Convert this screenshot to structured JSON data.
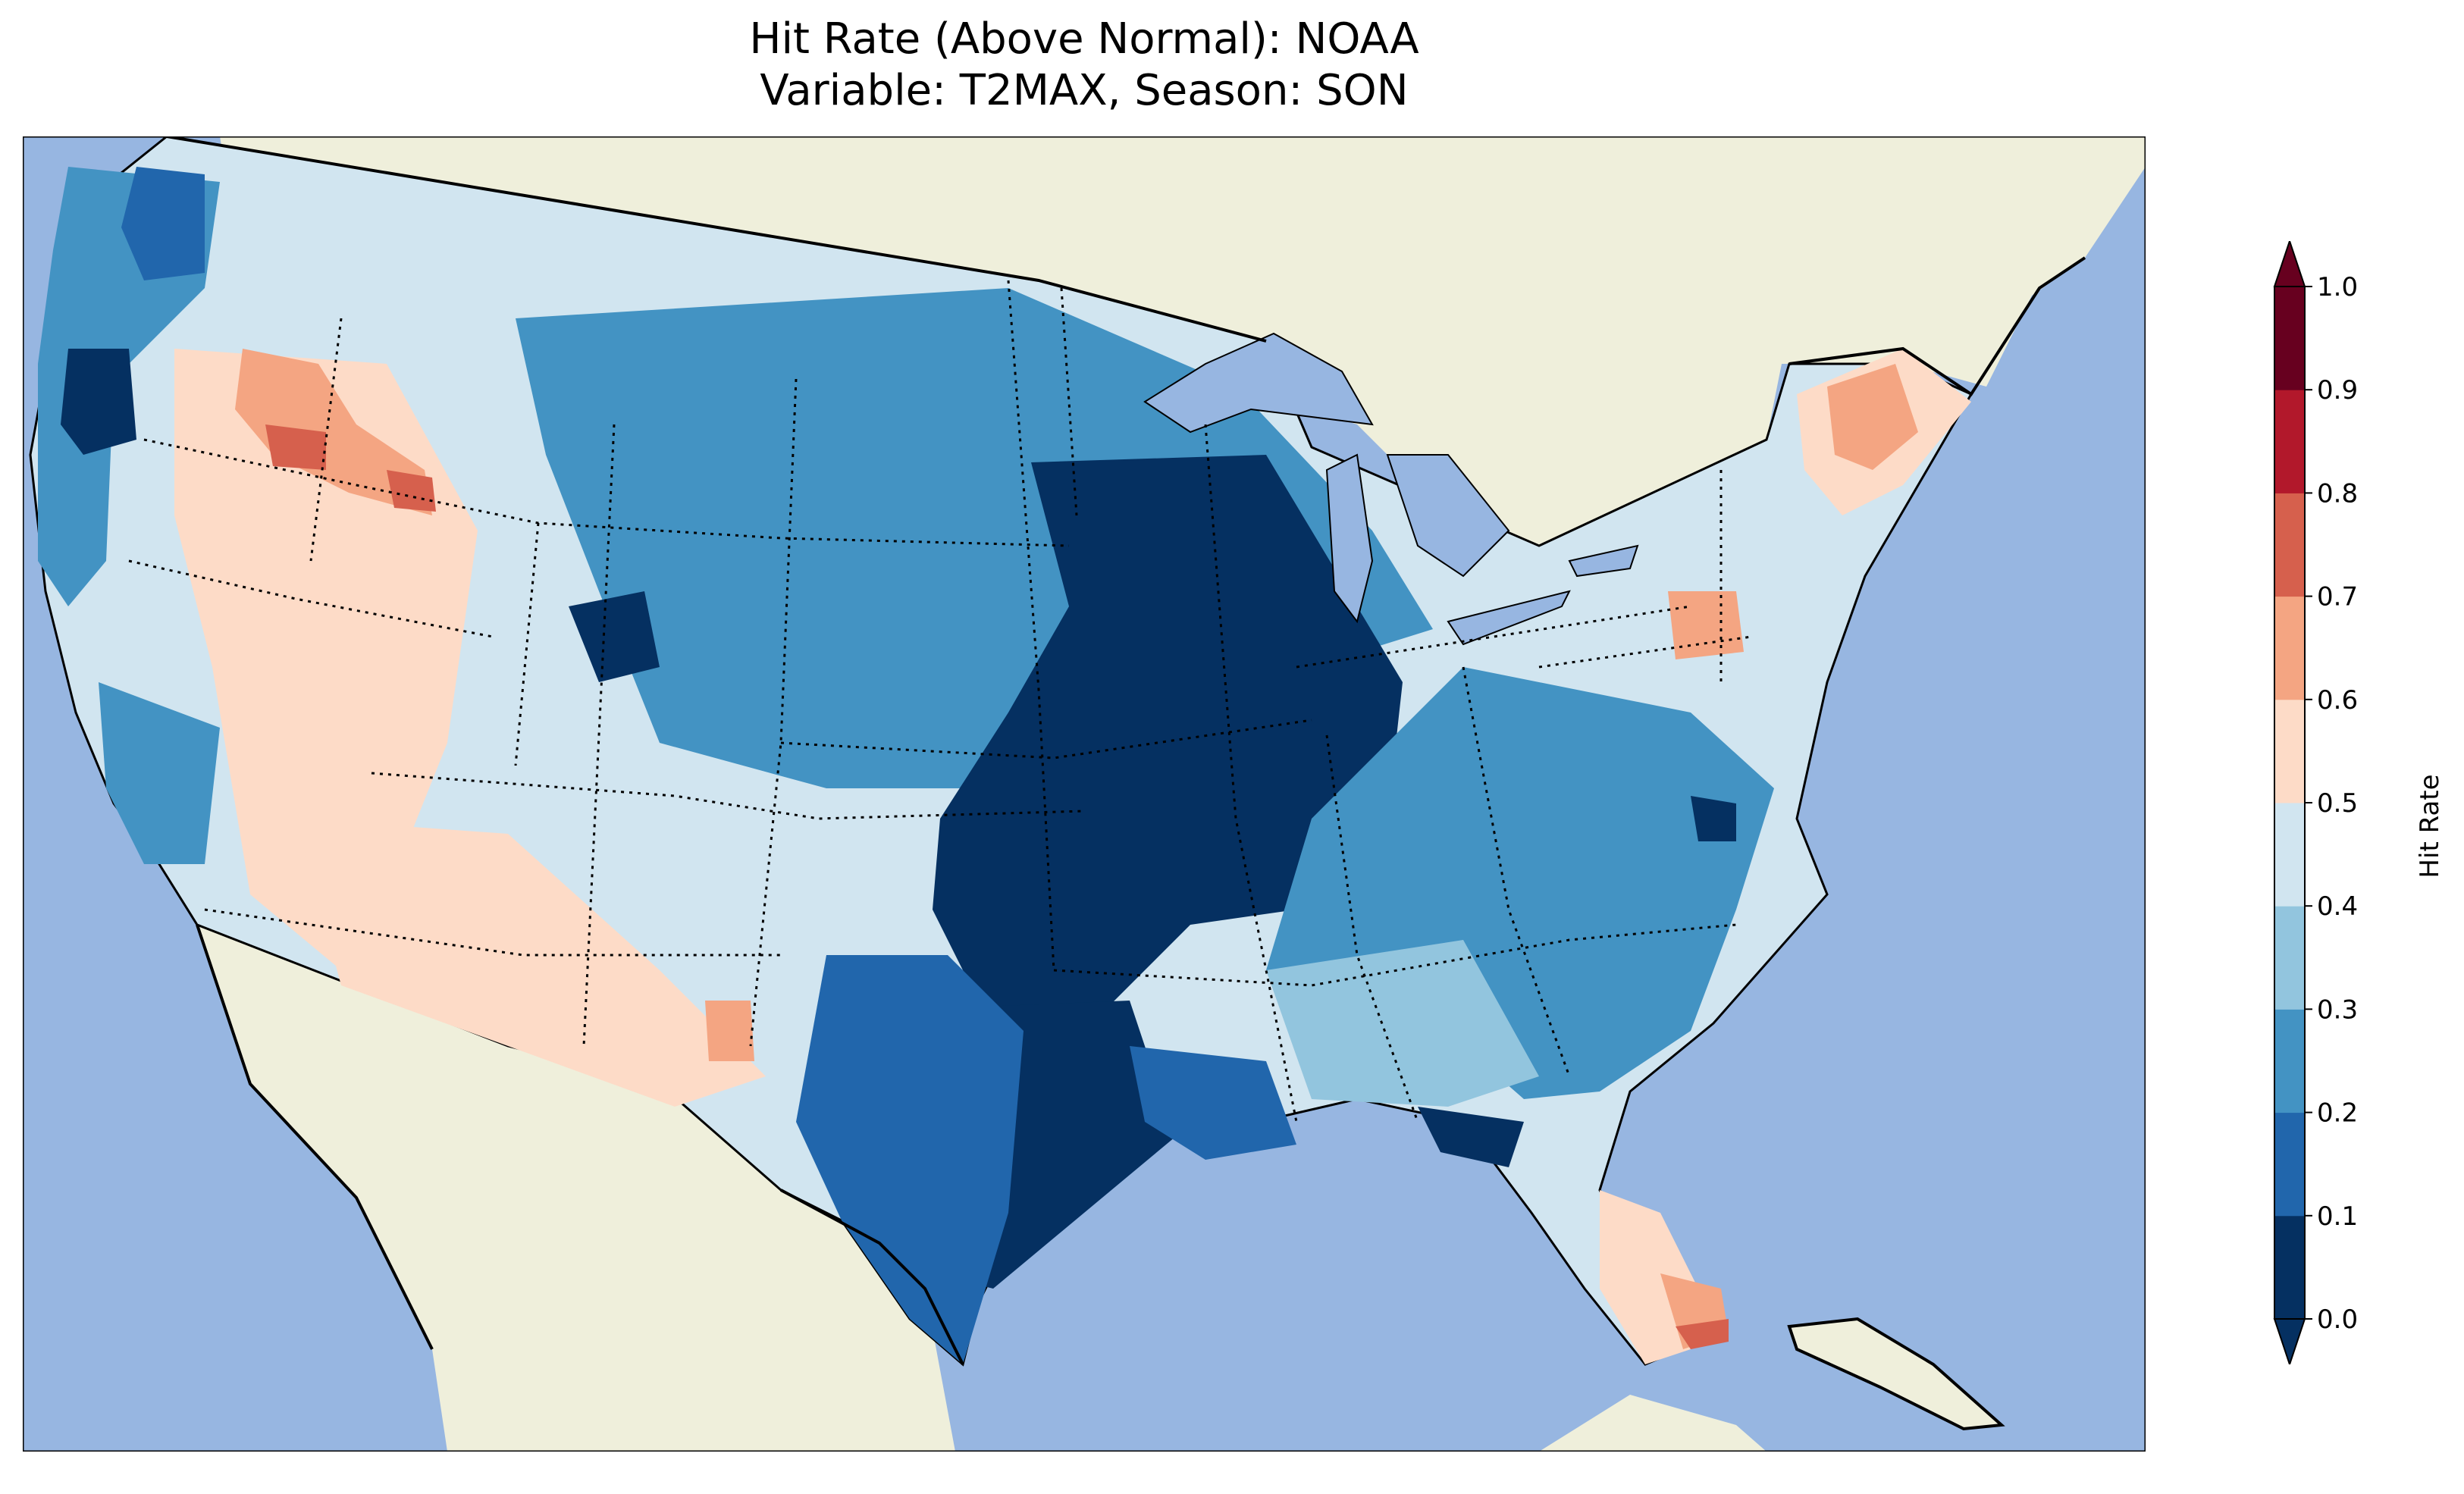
{
  "title": {
    "line1": "Hit Rate (Above Normal): NOAA",
    "line2": "Variable: T2MAX, Season: SON"
  },
  "colorbar": {
    "label": "Hit Rate",
    "ticks": [
      "0.0",
      "0.1",
      "0.2",
      "0.3",
      "0.4",
      "0.5",
      "0.6",
      "0.7",
      "0.8",
      "0.9",
      "1.0"
    ],
    "colors": [
      "#053061",
      "#2166ac",
      "#4393c3",
      "#92c5de",
      "#d1e5f0",
      "#fddbc7",
      "#f4a582",
      "#d6604d",
      "#b2182b",
      "#67001f"
    ],
    "under_color": "#053061",
    "over_color": "#67001f",
    "extend": "both"
  },
  "map": {
    "ocean_color": "#97b6e1",
    "land_color": "#efefdb",
    "lake_color": "#97b6e1",
    "projection": "lambert-conformal",
    "region": "contiguous-united-states"
  }
}
